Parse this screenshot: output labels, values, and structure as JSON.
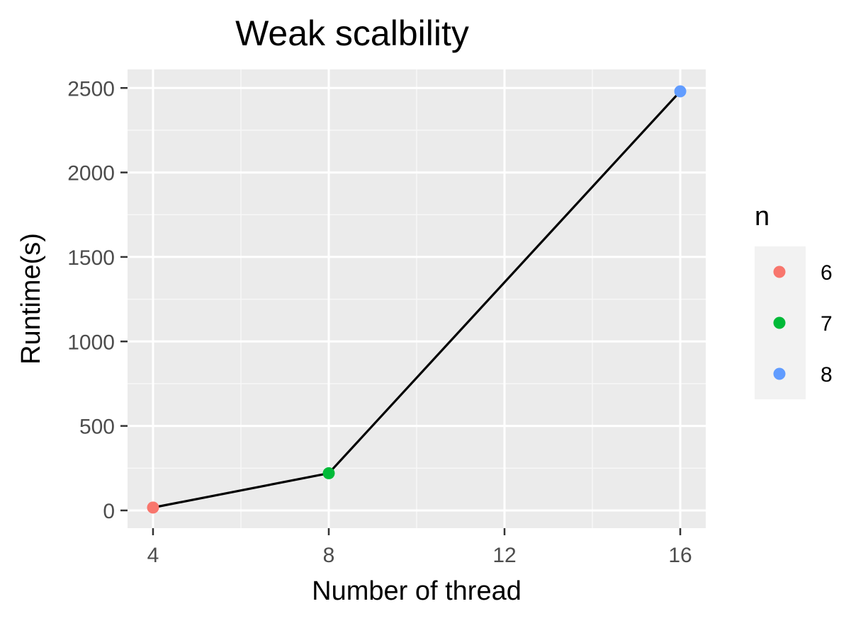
{
  "chart_data": {
    "type": "line",
    "title": "Weak scalbility",
    "xlabel": "Number of thread",
    "ylabel": "Runtime(s)",
    "xlim": [
      3.42,
      16.58
    ],
    "ylim": [
      -105,
      2610
    ],
    "x_ticks": [
      4,
      8,
      12,
      16
    ],
    "x_minor_ticks": [
      6,
      10,
      14
    ],
    "y_ticks": [
      0,
      500,
      1000,
      1500,
      2000,
      2500
    ],
    "y_minor_ticks": [
      250,
      750,
      1250,
      1750,
      2250
    ],
    "grid": true,
    "line_color": "#000000",
    "points": [
      {
        "x": 4,
        "y": 17,
        "n": "6"
      },
      {
        "x": 8,
        "y": 220,
        "n": "7"
      },
      {
        "x": 16,
        "y": 2480,
        "n": "8"
      }
    ],
    "legend": {
      "title": "n",
      "position": "right",
      "entries": [
        {
          "label": "6",
          "color": "#F8766D"
        },
        {
          "label": "7",
          "color": "#00BA38"
        },
        {
          "label": "8",
          "color": "#619CFF"
        }
      ]
    },
    "colors": {
      "panel_background": "#EBEBEB",
      "grid_major": "#FFFFFF",
      "grid_minor": "#F7F7F7",
      "axis_text": "#4D4D4D",
      "legend_key_background": "#F2F2F2"
    }
  }
}
